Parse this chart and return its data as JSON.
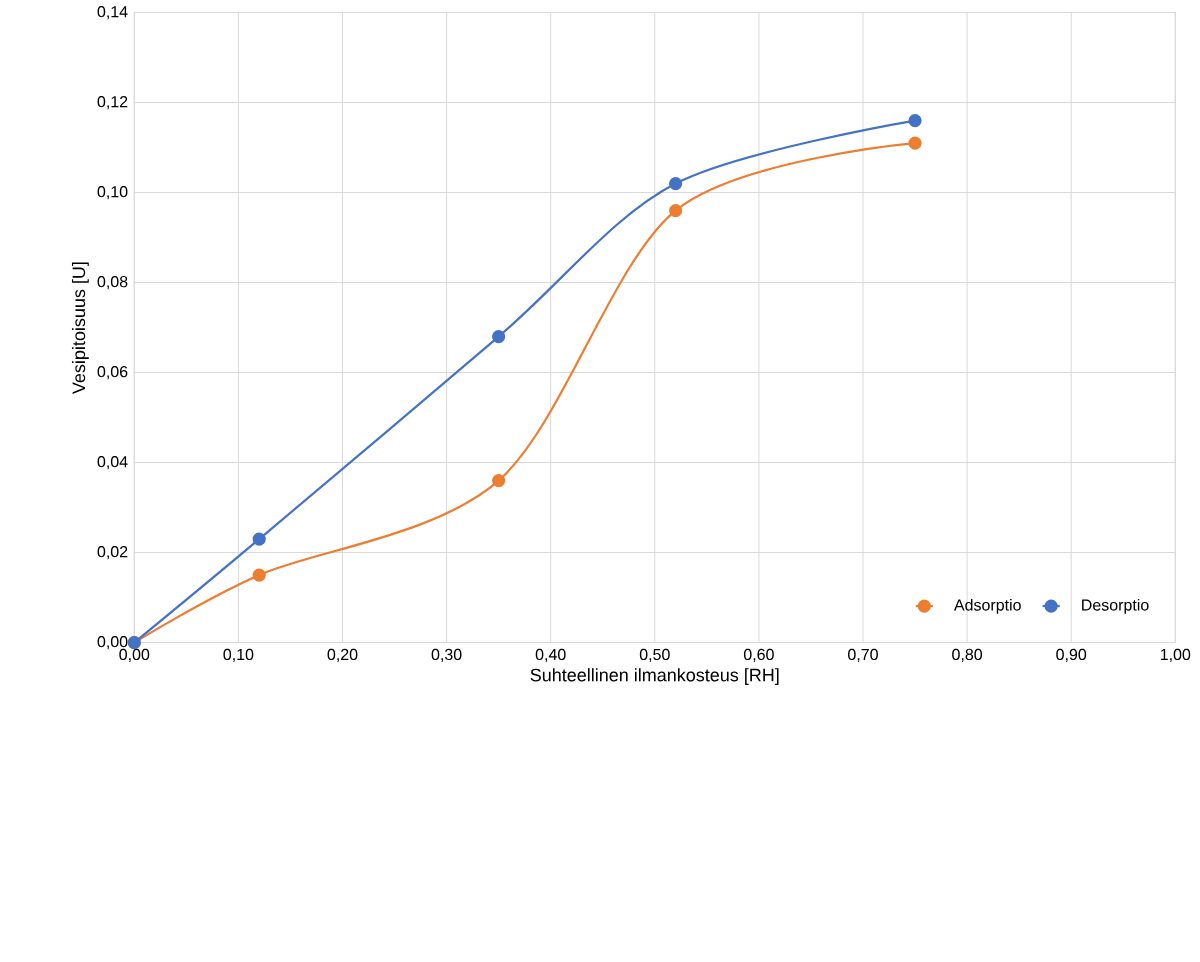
{
  "chart_data": {
    "type": "line",
    "xlabel": "Suhteellinen ilmankosteus [RH]",
    "ylabel": "Vesipitoisuus [U]",
    "x": [
      0,
      0.12,
      0.35,
      0.52,
      0.75
    ],
    "series": [
      {
        "name": "Adsorptio",
        "color": "#ed7d31",
        "values": [
          0,
          0.015,
          0.036,
          0.096,
          0.111
        ]
      },
      {
        "name": "Desorptio",
        "color": "#4472c4",
        "values": [
          0,
          0.023,
          0.068,
          0.102,
          0.116
        ]
      }
    ],
    "xlim": [
      0,
      1
    ],
    "ylim": [
      0,
      0.14
    ],
    "xticks": [
      {
        "value": 0,
        "label": "0,00"
      },
      {
        "value": 0.1,
        "label": "0,10"
      },
      {
        "value": 0.2,
        "label": "0,20"
      },
      {
        "value": 0.3,
        "label": "0,30"
      },
      {
        "value": 0.4,
        "label": "0,40"
      },
      {
        "value": 0.5,
        "label": "0,50"
      },
      {
        "value": 0.6,
        "label": "0,60"
      },
      {
        "value": 0.7,
        "label": "0,70"
      },
      {
        "value": 0.8,
        "label": "0,80"
      },
      {
        "value": 0.9,
        "label": "0,90"
      },
      {
        "value": 1,
        "label": "1,00"
      }
    ],
    "yticks": [
      {
        "value": 0,
        "label": "0,00"
      },
      {
        "value": 0.02,
        "label": "0,02"
      },
      {
        "value": 0.04,
        "label": "0,04"
      },
      {
        "value": 0.06,
        "label": "0,06"
      },
      {
        "value": 0.08,
        "label": "0,08"
      },
      {
        "value": 0.1,
        "label": "0,10"
      },
      {
        "value": 0.12,
        "label": "0,12"
      },
      {
        "value": 0.14,
        "label": "0,14"
      }
    ],
    "grid": true,
    "legend": "bottom right",
    "marker": "circle",
    "line_style": "solid"
  }
}
